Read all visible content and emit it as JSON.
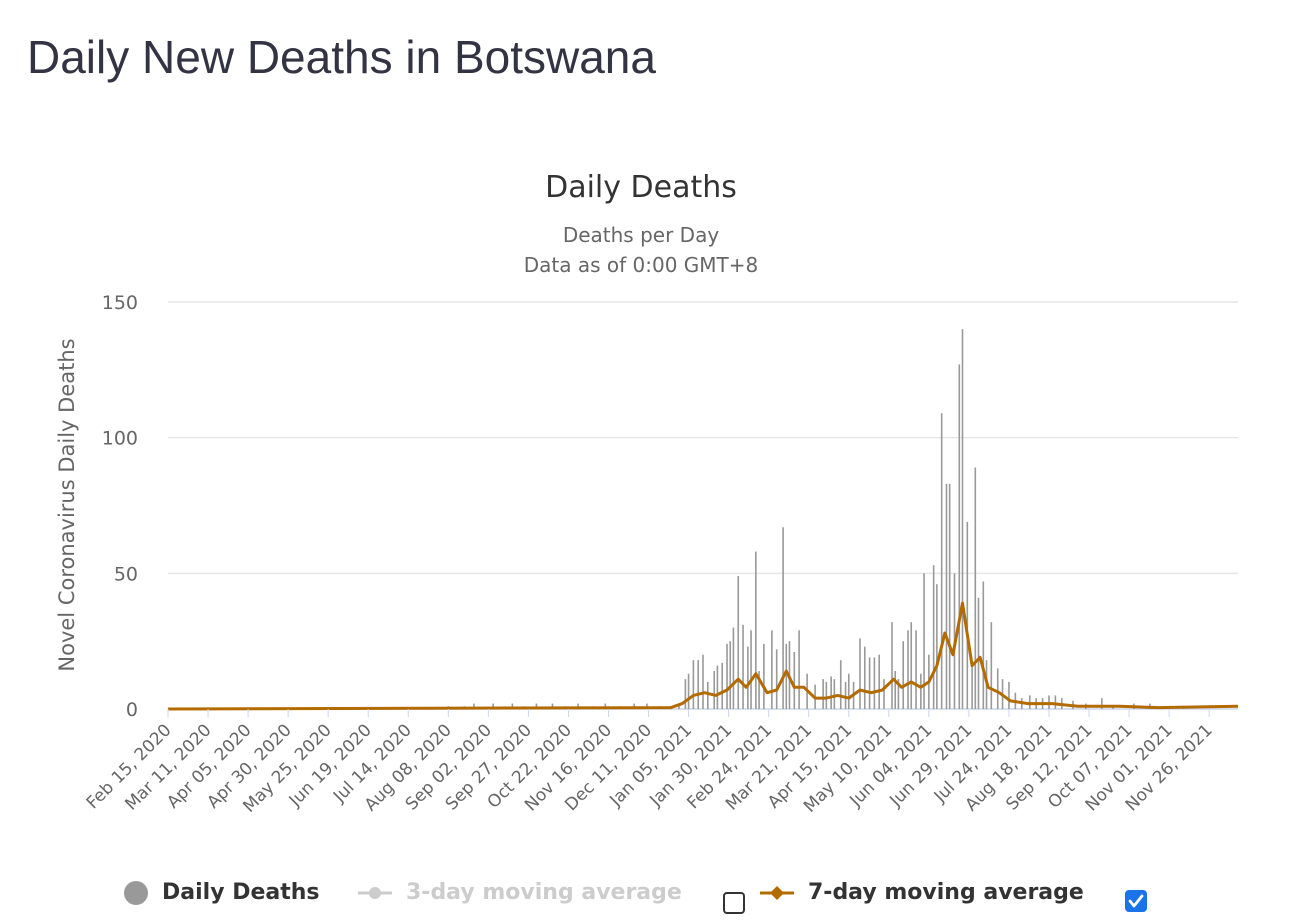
{
  "page": {
    "title": "Daily New Deaths in Botswana"
  },
  "chart_data": {
    "type": "bar",
    "title": "Daily Deaths",
    "subtitle_lines": [
      "Deaths per Day",
      "Data as of 0:00 GMT+8"
    ],
    "xlabel": "",
    "ylabel": "Novel Coronavirus Daily Deaths",
    "ylim": [
      0,
      150
    ],
    "yticks": [
      0,
      50,
      100,
      150
    ],
    "grid": true,
    "legend_position": "bottom",
    "x_start": "Feb 15, 2020",
    "x_end": "Dec 14, 2021",
    "x_tick_labels": [
      "Feb 15, 2020",
      "Mar 11, 2020",
      "Apr 05, 2020",
      "Apr 30, 2020",
      "May 25, 2020",
      "Jun 19, 2020",
      "Jul 14, 2020",
      "Aug 08, 2020",
      "Sep 02, 2020",
      "Sep 27, 2020",
      "Oct 22, 2020",
      "Nov 16, 2020",
      "Dec 11, 2020",
      "Jan 05, 2021",
      "Jan 30, 2021",
      "Feb 24, 2021",
      "Mar 21, 2021",
      "Apr 15, 2021",
      "May 10, 2021",
      "Jun 04, 2021",
      "Jun 29, 2021",
      "Jul 24, 2021",
      "Aug 18, 2021",
      "Sep 12, 2021",
      "Oct 07, 2021",
      "Nov 01, 2021",
      "Nov 26, 2021"
    ],
    "daily_deaths_nonzero": [
      {
        "date": "Aug 08, 2020",
        "value": 1
      },
      {
        "date": "Aug 18, 2020",
        "value": 1
      },
      {
        "date": "Aug 24, 2020",
        "value": 2
      },
      {
        "date": "Sep 05, 2020",
        "value": 2
      },
      {
        "date": "Sep 12, 2020",
        "value": 1
      },
      {
        "date": "Sep 17, 2020",
        "value": 2
      },
      {
        "date": "Sep 24, 2020",
        "value": 1
      },
      {
        "date": "Oct 02, 2020",
        "value": 2
      },
      {
        "date": "Oct 12, 2020",
        "value": 2
      },
      {
        "date": "Oct 20, 2020",
        "value": 1
      },
      {
        "date": "Oct 28, 2020",
        "value": 2
      },
      {
        "date": "Nov 06, 2020",
        "value": 1
      },
      {
        "date": "Nov 14, 2020",
        "value": 2
      },
      {
        "date": "Nov 23, 2020",
        "value": 1
      },
      {
        "date": "Dec 02, 2020",
        "value": 2
      },
      {
        "date": "Dec 10, 2020",
        "value": 2
      },
      {
        "date": "Dec 18, 2020",
        "value": 1
      },
      {
        "date": "Dec 24, 2020",
        "value": 1
      },
      {
        "date": "Dec 30, 2020",
        "value": 2
      },
      {
        "date": "Jan 03, 2021",
        "value": 11
      },
      {
        "date": "Jan 05, 2021",
        "value": 13
      },
      {
        "date": "Jan 08, 2021",
        "value": 18
      },
      {
        "date": "Jan 11, 2021",
        "value": 18
      },
      {
        "date": "Jan 14, 2021",
        "value": 20
      },
      {
        "date": "Jan 17, 2021",
        "value": 10
      },
      {
        "date": "Jan 21, 2021",
        "value": 14
      },
      {
        "date": "Jan 23, 2021",
        "value": 16
      },
      {
        "date": "Jan 26, 2021",
        "value": 17
      },
      {
        "date": "Jan 29, 2021",
        "value": 24
      },
      {
        "date": "Jan 31, 2021",
        "value": 25
      },
      {
        "date": "Feb 02, 2021",
        "value": 30
      },
      {
        "date": "Feb 05, 2021",
        "value": 49
      },
      {
        "date": "Feb 08, 2021",
        "value": 31
      },
      {
        "date": "Feb 11, 2021",
        "value": 23
      },
      {
        "date": "Feb 13, 2021",
        "value": 29
      },
      {
        "date": "Feb 16, 2021",
        "value": 58
      },
      {
        "date": "Feb 18, 2021",
        "value": 14
      },
      {
        "date": "Feb 21, 2021",
        "value": 24
      },
      {
        "date": "Feb 26, 2021",
        "value": 29
      },
      {
        "date": "Mar 01, 2021",
        "value": 22
      },
      {
        "date": "Mar 05, 2021",
        "value": 67
      },
      {
        "date": "Mar 07, 2021",
        "value": 24
      },
      {
        "date": "Mar 09, 2021",
        "value": 25
      },
      {
        "date": "Mar 12, 2021",
        "value": 21
      },
      {
        "date": "Mar 15, 2021",
        "value": 29
      },
      {
        "date": "Mar 20, 2021",
        "value": 13
      },
      {
        "date": "Mar 25, 2021",
        "value": 9
      },
      {
        "date": "Mar 30, 2021",
        "value": 11
      },
      {
        "date": "Apr 01, 2021",
        "value": 10
      },
      {
        "date": "Apr 04, 2021",
        "value": 12
      },
      {
        "date": "Apr 06, 2021",
        "value": 11
      },
      {
        "date": "Apr 10, 2021",
        "value": 18
      },
      {
        "date": "Apr 13, 2021",
        "value": 10
      },
      {
        "date": "Apr 15, 2021",
        "value": 13
      },
      {
        "date": "Apr 18, 2021",
        "value": 10
      },
      {
        "date": "Apr 22, 2021",
        "value": 26
      },
      {
        "date": "Apr 25, 2021",
        "value": 23
      },
      {
        "date": "Apr 28, 2021",
        "value": 19
      },
      {
        "date": "May 01, 2021",
        "value": 19
      },
      {
        "date": "May 04, 2021",
        "value": 20
      },
      {
        "date": "May 07, 2021",
        "value": 11
      },
      {
        "date": "May 12, 2021",
        "value": 32
      },
      {
        "date": "May 14, 2021",
        "value": 14
      },
      {
        "date": "May 16, 2021",
        "value": 11
      },
      {
        "date": "May 19, 2021",
        "value": 25
      },
      {
        "date": "May 22, 2021",
        "value": 29
      },
      {
        "date": "May 24, 2021",
        "value": 32
      },
      {
        "date": "May 27, 2021",
        "value": 29
      },
      {
        "date": "May 30, 2021",
        "value": 13
      },
      {
        "date": "Jun 01, 2021",
        "value": 50
      },
      {
        "date": "Jun 04, 2021",
        "value": 20
      },
      {
        "date": "Jun 07, 2021",
        "value": 53
      },
      {
        "date": "Jun 09, 2021",
        "value": 46
      },
      {
        "date": "Jun 12, 2021",
        "value": 109
      },
      {
        "date": "Jun 15, 2021",
        "value": 83
      },
      {
        "date": "Jun 17, 2021",
        "value": 83
      },
      {
        "date": "Jun 20, 2021",
        "value": 50
      },
      {
        "date": "Jun 23, 2021",
        "value": 127
      },
      {
        "date": "Jun 25, 2021",
        "value": 140
      },
      {
        "date": "Jun 28, 2021",
        "value": 69
      },
      {
        "date": "Jul 01, 2021",
        "value": 17
      },
      {
        "date": "Jul 03, 2021",
        "value": 89
      },
      {
        "date": "Jul 05, 2021",
        "value": 41
      },
      {
        "date": "Jul 08, 2021",
        "value": 47
      },
      {
        "date": "Jul 10, 2021",
        "value": 18
      },
      {
        "date": "Jul 13, 2021",
        "value": 32
      },
      {
        "date": "Jul 17, 2021",
        "value": 15
      },
      {
        "date": "Jul 20, 2021",
        "value": 11
      },
      {
        "date": "Jul 24, 2021",
        "value": 10
      },
      {
        "date": "Jul 28, 2021",
        "value": 6
      },
      {
        "date": "Aug 01, 2021",
        "value": 4
      },
      {
        "date": "Aug 06, 2021",
        "value": 5
      },
      {
        "date": "Aug 10, 2021",
        "value": 4
      },
      {
        "date": "Aug 14, 2021",
        "value": 4
      },
      {
        "date": "Aug 18, 2021",
        "value": 5
      },
      {
        "date": "Aug 22, 2021",
        "value": 5
      },
      {
        "date": "Aug 26, 2021",
        "value": 4
      },
      {
        "date": "Sep 02, 2021",
        "value": 3
      },
      {
        "date": "Sep 10, 2021",
        "value": 2
      },
      {
        "date": "Sep 20, 2021",
        "value": 4
      },
      {
        "date": "Sep 27, 2021",
        "value": 1
      },
      {
        "date": "Oct 10, 2021",
        "value": 2
      },
      {
        "date": "Oct 20, 2021",
        "value": 2
      },
      {
        "date": "Nov 01, 2021",
        "value": 1
      },
      {
        "date": "Nov 10, 2021",
        "value": 1
      }
    ],
    "moving_average_7day": [
      {
        "date": "Feb 15, 2020",
        "value": 0
      },
      {
        "date": "Dec 25, 2020",
        "value": 0.5
      },
      {
        "date": "Jan 01, 2021",
        "value": 2
      },
      {
        "date": "Jan 08, 2021",
        "value": 5
      },
      {
        "date": "Jan 15, 2021",
        "value": 6
      },
      {
        "date": "Jan 22, 2021",
        "value": 5
      },
      {
        "date": "Jan 29, 2021",
        "value": 7
      },
      {
        "date": "Feb 05, 2021",
        "value": 11
      },
      {
        "date": "Feb 10, 2021",
        "value": 8
      },
      {
        "date": "Feb 16, 2021",
        "value": 13
      },
      {
        "date": "Feb 23, 2021",
        "value": 6
      },
      {
        "date": "Mar 01, 2021",
        "value": 7
      },
      {
        "date": "Mar 07, 2021",
        "value": 14
      },
      {
        "date": "Mar 12, 2021",
        "value": 8
      },
      {
        "date": "Mar 18, 2021",
        "value": 8
      },
      {
        "date": "Mar 25, 2021",
        "value": 4
      },
      {
        "date": "Apr 01, 2021",
        "value": 4
      },
      {
        "date": "Apr 08, 2021",
        "value": 5
      },
      {
        "date": "Apr 15, 2021",
        "value": 4
      },
      {
        "date": "Apr 22, 2021",
        "value": 7
      },
      {
        "date": "Apr 29, 2021",
        "value": 6
      },
      {
        "date": "May 06, 2021",
        "value": 7
      },
      {
        "date": "May 13, 2021",
        "value": 11
      },
      {
        "date": "May 18, 2021",
        "value": 8
      },
      {
        "date": "May 24, 2021",
        "value": 10
      },
      {
        "date": "May 30, 2021",
        "value": 8
      },
      {
        "date": "Jun 04, 2021",
        "value": 10
      },
      {
        "date": "Jun 09, 2021",
        "value": 16
      },
      {
        "date": "Jun 14, 2021",
        "value": 28
      },
      {
        "date": "Jun 19, 2021",
        "value": 20
      },
      {
        "date": "Jun 25, 2021",
        "value": 39
      },
      {
        "date": "Jul 01, 2021",
        "value": 16
      },
      {
        "date": "Jul 06, 2021",
        "value": 19
      },
      {
        "date": "Jul 11, 2021",
        "value": 8
      },
      {
        "date": "Jul 18, 2021",
        "value": 6
      },
      {
        "date": "Jul 25, 2021",
        "value": 3
      },
      {
        "date": "Aug 05, 2021",
        "value": 2
      },
      {
        "date": "Aug 20, 2021",
        "value": 2
      },
      {
        "date": "Sep 05, 2021",
        "value": 1
      },
      {
        "date": "Oct 01, 2021",
        "value": 1
      },
      {
        "date": "Oct 25, 2021",
        "value": 0.5
      },
      {
        "date": "Dec 14, 2021",
        "value": 1
      }
    ],
    "colors": {
      "bars": "#999999",
      "ma7": "#b36b00",
      "ma3": "#cccccc",
      "grid": "#e6e6e6",
      "axis": "#ccd6eb"
    }
  },
  "legend": {
    "items": [
      {
        "label": "Daily Deaths",
        "color": "#333333",
        "symbol": "circle"
      },
      {
        "label": "3-day moving average",
        "color": "#cccccc",
        "symbol": "line-dot"
      },
      {
        "label": "7-day moving average",
        "color": "#333333",
        "symbol": "line-diamond"
      }
    ],
    "checkbox_3day_checked": false,
    "checkbox_7day_checked": true
  }
}
